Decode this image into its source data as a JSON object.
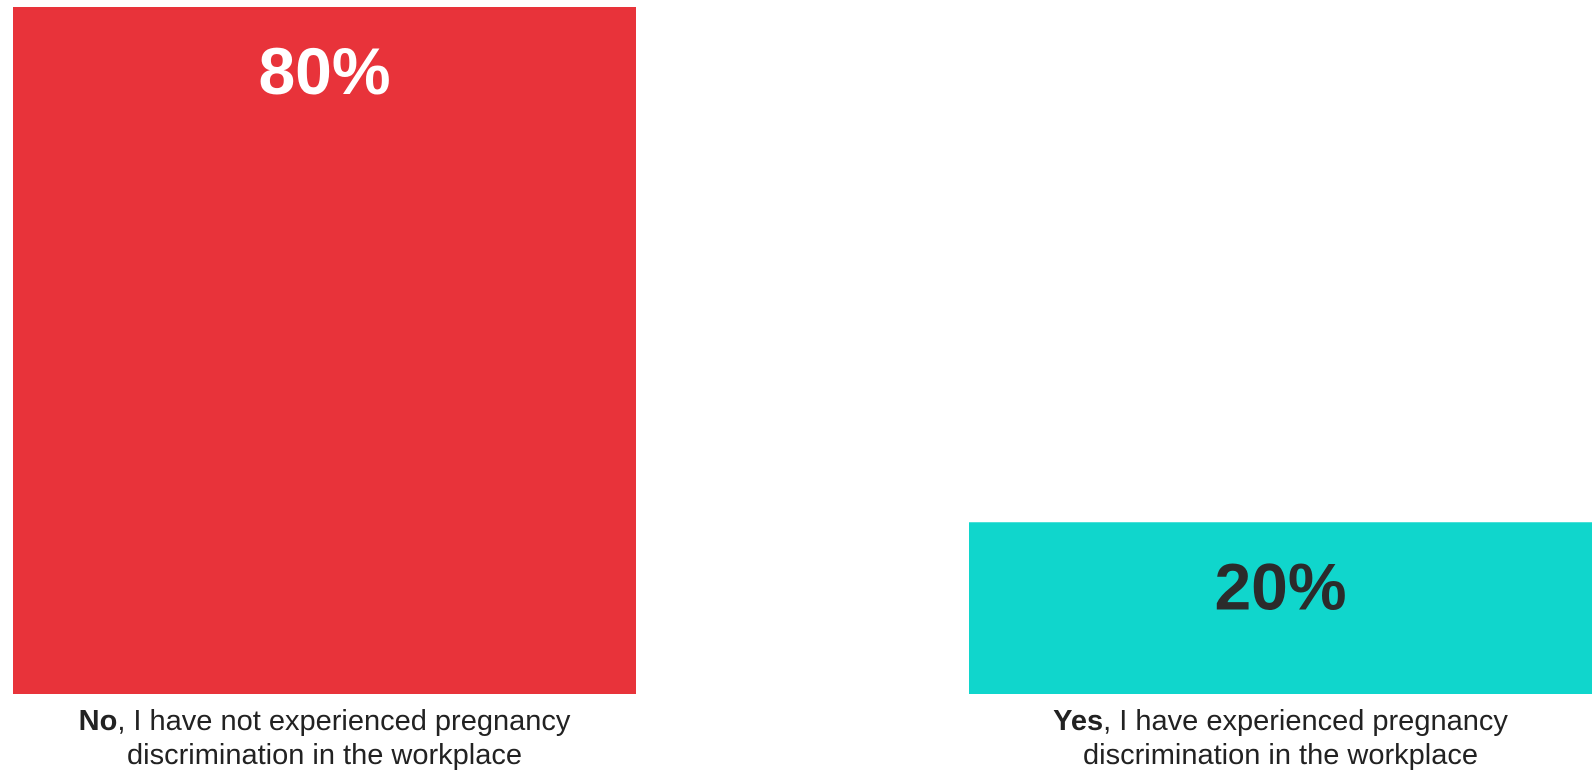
{
  "chart_data": {
    "type": "bar",
    "categories": [
      "No",
      "Yes"
    ],
    "values": [
      80,
      20
    ],
    "data_labels": [
      "80%",
      "20%"
    ],
    "category_labels": [
      {
        "bold": "No",
        "rest": ", I have not experienced pregnancy",
        "line2": "discrimination in the workplace"
      },
      {
        "bold": "Yes",
        "rest": ", I have experienced pregnancy",
        "line2": "discrimination in the workplace"
      }
    ],
    "ylim": [
      0,
      80
    ],
    "grid": false,
    "legend": "none",
    "colors": [
      "#E8333A",
      "#10D6CC"
    ],
    "label_colors": [
      "#FFFFFF",
      "#2B2B2B"
    ]
  }
}
